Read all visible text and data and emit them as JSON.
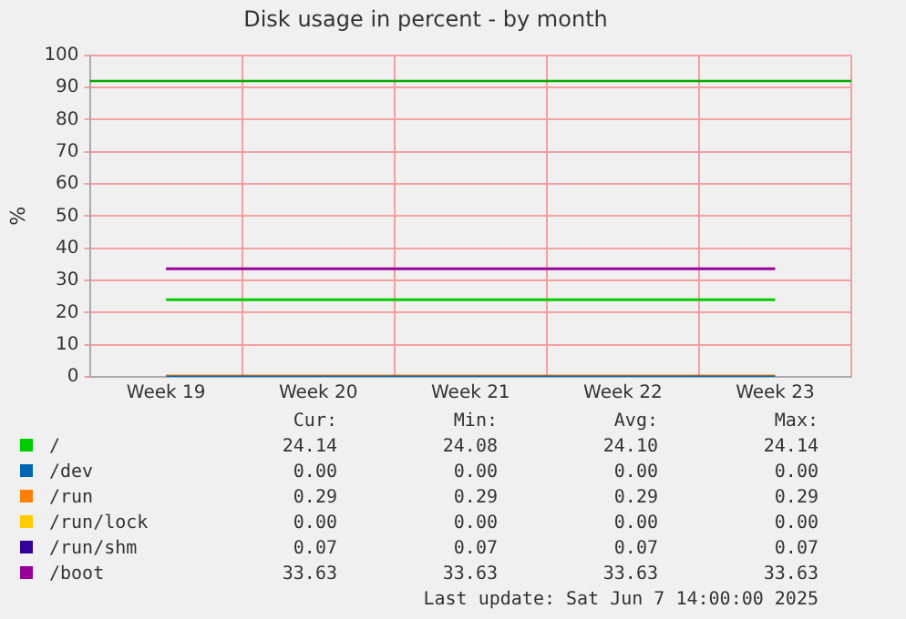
{
  "chart_data": {
    "type": "line",
    "title": "Disk usage in percent - by month",
    "ylabel": "%",
    "categories": [
      "Week 19",
      "Week 20",
      "Week 21",
      "Week 22",
      "Week 23"
    ],
    "ylim": [
      0,
      100
    ],
    "yticks": [
      0,
      10,
      20,
      30,
      40,
      50,
      60,
      70,
      80,
      90,
      100
    ],
    "grid": true,
    "legend": "bottom",
    "marker": "none",
    "line_style": "solid",
    "series": [
      {
        "name": "/",
        "color": "#00cc00",
        "values": [
          24,
          24,
          24,
          24,
          24
        ]
      },
      {
        "name": "/dev",
        "color": "#0066b3",
        "values": [
          0,
          0,
          0,
          0,
          0
        ]
      },
      {
        "name": "/run",
        "color": "#ff8000",
        "values": [
          0.3,
          0.3,
          0.3,
          0.3,
          0.3
        ]
      },
      {
        "name": "/run/lock",
        "color": "#ffcc00",
        "values": [
          null,
          null,
          null,
          null,
          null
        ]
      },
      {
        "name": "/run/shm",
        "color": "#330099",
        "values": [
          null,
          null,
          null,
          null,
          null
        ]
      },
      {
        "name": "/boot",
        "color": "#990099",
        "values": [
          33.6,
          33.6,
          33.6,
          33.6,
          33.6
        ]
      }
    ],
    "ref_lines": [
      {
        "axis": "y",
        "value": 92,
        "color": "#00aa00"
      }
    ],
    "annotations": [
      "Cur:",
      "Min:",
      "Avg:",
      "Max:",
      "24.14",
      "24.08",
      "24.10",
      "24.14",
      "0.00",
      "0.00",
      "0.00",
      "0.00",
      "0.29",
      "0.29",
      "0.29",
      "0.29",
      "0.00",
      "0.00",
      "0.00",
      "0.00",
      "0.07",
      "0.07",
      "0.07",
      "0.07",
      "33.63",
      "33.63",
      "33.63",
      "33.63",
      "Last update:  Sat Jun  7 14:00:00 2025"
    ]
  }
}
